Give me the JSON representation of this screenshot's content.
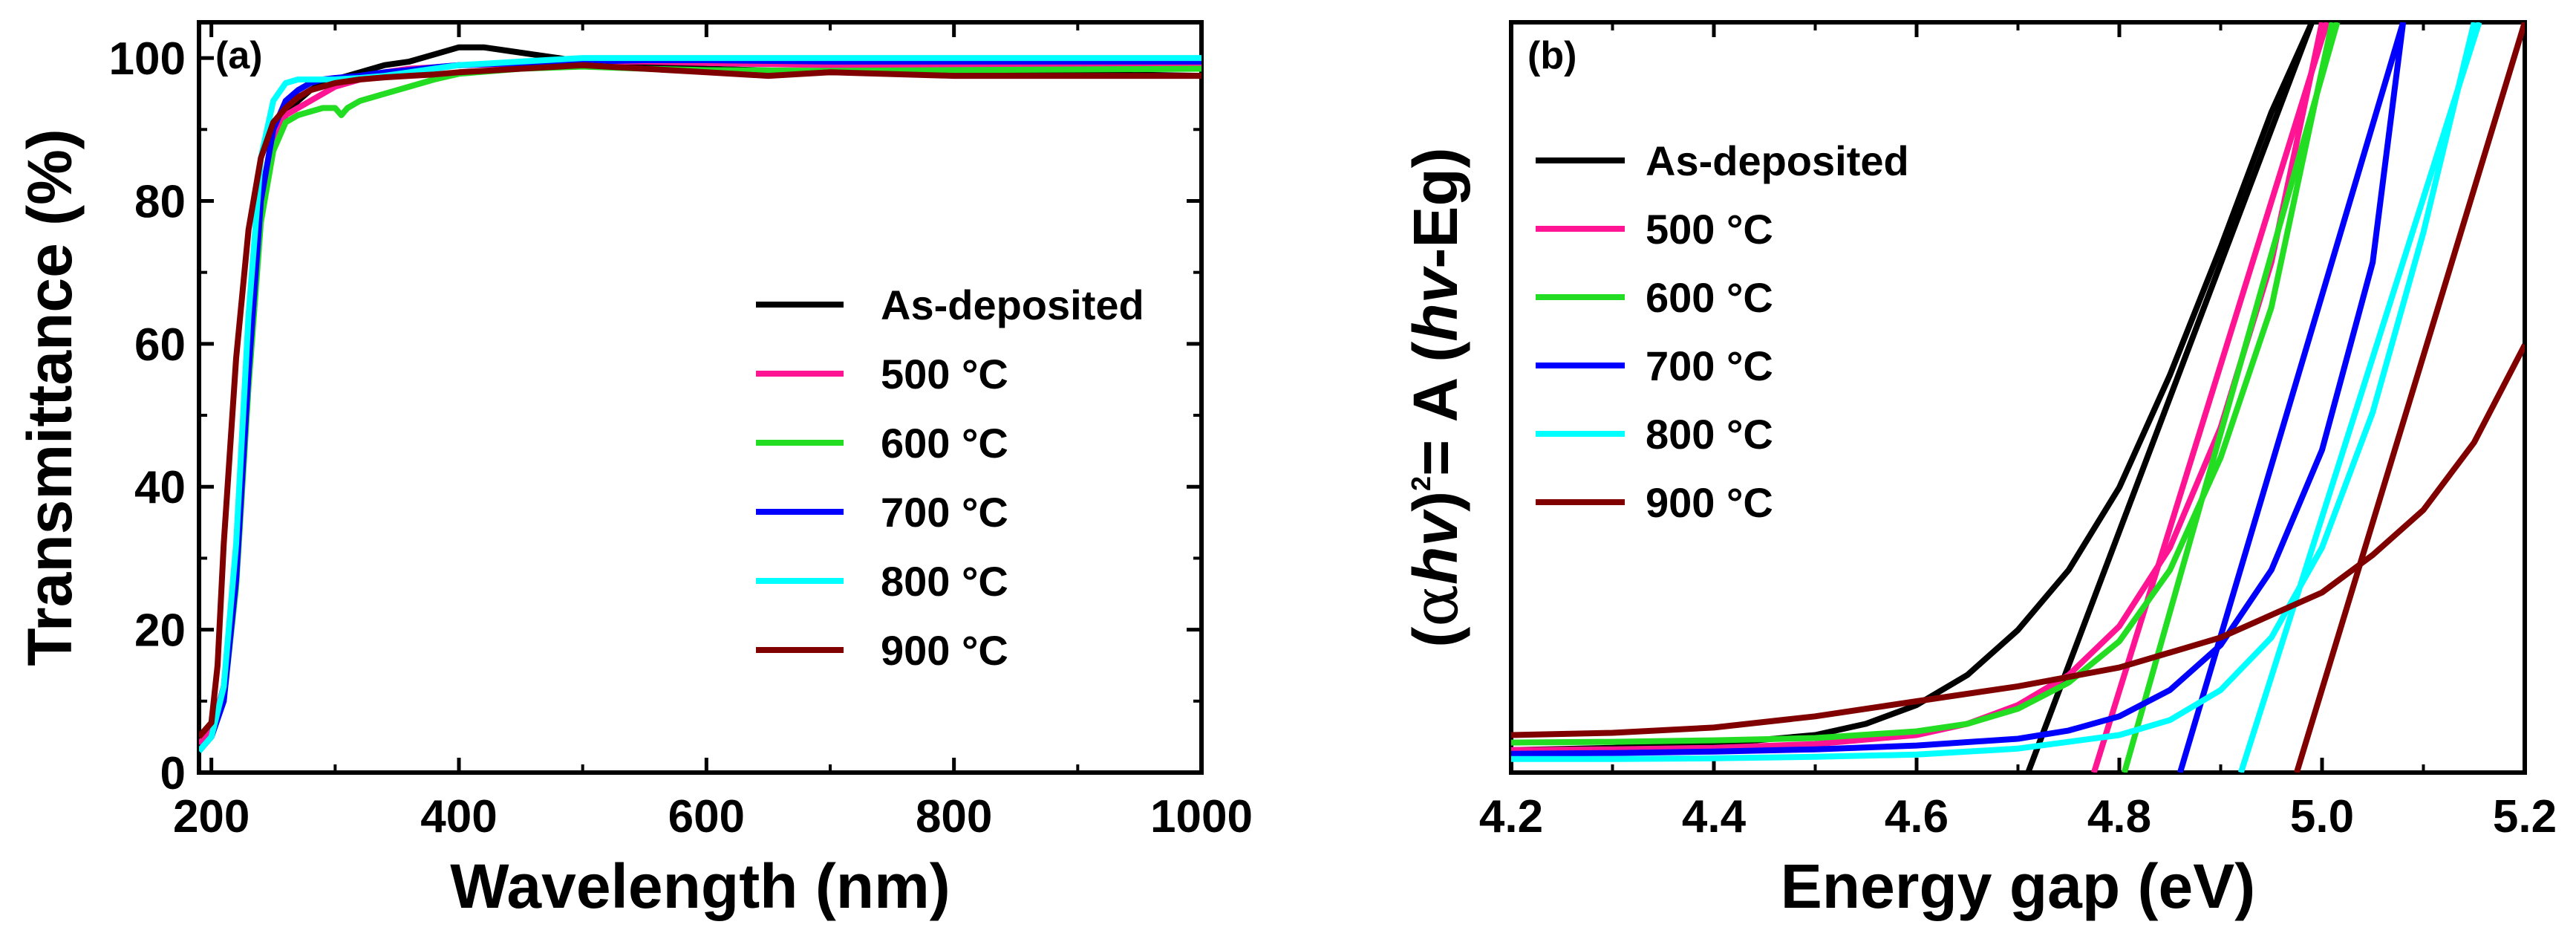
{
  "chart_data": [
    {
      "type": "line",
      "panel_label": "(a)",
      "xlabel": "Wavelength (nm)",
      "ylabel": "Transmittance (%)",
      "xlim": [
        190,
        1000
      ],
      "ylim": [
        0,
        105
      ],
      "xticks": [
        200,
        400,
        600,
        800,
        1000
      ],
      "yticks": [
        0,
        20,
        40,
        60,
        80,
        100
      ],
      "xtick_labels": [
        "200",
        "400",
        "600",
        "800",
        "1000"
      ],
      "ytick_labels": [
        "0",
        "20",
        "40",
        "60",
        "80",
        "100"
      ],
      "legend_position": "center-right",
      "series": [
        {
          "name": "As-deposited",
          "color": "#000000",
          "x": [
            190,
            200,
            210,
            220,
            230,
            240,
            250,
            260,
            270,
            280,
            290,
            300,
            320,
            340,
            360,
            380,
            400,
            420,
            440,
            460,
            480,
            500,
            550,
            600,
            700,
            800,
            900,
            1000
          ],
          "y": [
            4,
            6,
            12,
            28,
            55,
            78,
            88,
            92,
            94,
            95.5,
            96.5,
            97,
            98,
            99,
            99.5,
            100.5,
            101.5,
            101.5,
            101,
            100.5,
            100,
            99.5,
            99,
            98.5,
            98,
            97.8,
            97.8,
            97.5
          ]
        },
        {
          "name": "500 °C",
          "color": "#ff1493",
          "x": [
            190,
            200,
            210,
            220,
            230,
            240,
            250,
            260,
            270,
            280,
            290,
            300,
            320,
            340,
            360,
            380,
            400,
            450,
            500,
            550,
            600,
            700,
            800,
            900,
            1000
          ],
          "y": [
            4,
            6,
            12,
            30,
            58,
            80,
            89,
            92,
            93,
            94,
            95,
            96,
            97,
            98,
            98.5,
            98.7,
            99,
            99.2,
            99.5,
            99.5,
            99.3,
            99,
            99,
            99,
            99
          ]
        },
        {
          "name": "600 °C",
          "color": "#22dd22",
          "x": [
            190,
            200,
            210,
            220,
            230,
            240,
            250,
            260,
            270,
            280,
            290,
            300,
            305,
            310,
            320,
            340,
            360,
            380,
            400,
            450,
            500,
            550,
            600,
            700,
            800,
            900,
            1000
          ],
          "y": [
            3,
            5,
            10,
            26,
            54,
            77,
            87,
            91,
            92,
            92.5,
            93,
            93,
            92,
            93,
            94,
            95,
            96,
            97,
            97.8,
            98.5,
            98.8,
            98.5,
            98.3,
            98.2,
            98.3,
            98.4,
            98.5
          ]
        },
        {
          "name": "700 °C",
          "color": "#0000ff",
          "x": [
            190,
            200,
            210,
            220,
            230,
            240,
            250,
            260,
            270,
            280,
            290,
            300,
            320,
            340,
            360,
            380,
            400,
            450,
            500,
            550,
            600,
            700,
            800,
            900,
            1000
          ],
          "y": [
            3,
            5,
            10,
            27,
            56,
            80,
            90,
            94,
            95.5,
            96.5,
            97,
            97.2,
            97.5,
            98,
            98.3,
            98.7,
            99,
            99.3,
            99.5,
            99.7,
            99.7,
            99.5,
            99.5,
            99.5,
            99.5
          ]
        },
        {
          "name": "800 °C",
          "color": "#00ffff",
          "x": [
            190,
            200,
            210,
            220,
            230,
            240,
            250,
            260,
            270,
            280,
            290,
            300,
            320,
            340,
            360,
            380,
            400,
            450,
            500,
            550,
            600,
            700,
            800,
            900,
            1000
          ],
          "y": [
            3,
            5,
            12,
            32,
            64,
            86,
            94,
            96.5,
            97,
            97,
            97,
            97,
            97.2,
            97.5,
            98,
            98.5,
            99,
            99.5,
            100,
            100,
            100,
            100,
            100,
            100,
            100
          ]
        },
        {
          "name": "900 °C",
          "color": "#800000",
          "x": [
            190,
            200,
            205,
            210,
            220,
            230,
            240,
            250,
            260,
            270,
            280,
            290,
            300,
            320,
            340,
            360,
            380,
            400,
            450,
            500,
            550,
            600,
            650,
            700,
            800,
            900,
            1000
          ],
          "y": [
            5,
            7,
            15,
            32,
            58,
            76,
            86,
            91,
            93,
            94.5,
            95.5,
            96,
            96.5,
            97,
            97.3,
            97.5,
            97.7,
            98,
            98.5,
            99,
            98.5,
            98,
            97.5,
            98,
            97.5,
            97.5,
            97.5
          ]
        }
      ]
    },
    {
      "type": "line",
      "panel_label": "(b)",
      "xlabel": "Energy gap (eV)",
      "ylabel": "(αhv)²= A (hv-Eg)",
      "ylabel_parts": {
        "open": "(",
        "alpha": "α",
        "hv": "hv",
        "close": ")",
        "sup": "2",
        "eq": "= A (",
        "hv2": "hv",
        "tail": "-Eg)"
      },
      "xlim": [
        4.2,
        5.2
      ],
      "ylim": [
        0,
        100
      ],
      "xticks": [
        4.2,
        4.4,
        4.6,
        4.8,
        5.0,
        5.2
      ],
      "xtick_labels": [
        "4.2",
        "4.4",
        "4.6",
        "4.8",
        "5.0",
        "5.2"
      ],
      "legend_position": "top-left",
      "series": [
        {
          "name": "As-deposited",
          "color": "#000000",
          "x": [
            4.2,
            4.3,
            4.4,
            4.5,
            4.55,
            4.6,
            4.65,
            4.7,
            4.75,
            4.8,
            4.85,
            4.9,
            4.95,
            4.99
          ],
          "y": [
            3,
            3.3,
            3.8,
            5,
            6.5,
            9,
            13,
            19,
            27,
            38,
            53,
            70,
            88,
            100
          ],
          "tangent": [
            4.71,
            4.99
          ]
        },
        {
          "name": "500 °C",
          "color": "#ff1493",
          "x": [
            4.2,
            4.3,
            4.4,
            4.5,
            4.6,
            4.65,
            4.7,
            4.75,
            4.8,
            4.85,
            4.9,
            4.95,
            5.0
          ],
          "y": [
            3,
            3.1,
            3.3,
            3.8,
            5,
            6.5,
            9,
            13,
            19.5,
            30,
            46,
            68,
            100
          ],
          "tangent": [
            4.775,
            5.005
          ]
        },
        {
          "name": "600 °C",
          "color": "#22dd22",
          "x": [
            4.2,
            4.3,
            4.4,
            4.5,
            4.6,
            4.65,
            4.7,
            4.75,
            4.8,
            4.85,
            4.9,
            4.95,
            5.01
          ],
          "y": [
            4,
            4.1,
            4.3,
            4.6,
            5.5,
            6.5,
            8.5,
            12,
            17.5,
            27,
            42,
            62,
            100
          ],
          "tangent": [
            4.805,
            5.015
          ]
        },
        {
          "name": "700 °C",
          "color": "#0000ff",
          "x": [
            4.2,
            4.3,
            4.4,
            4.5,
            4.6,
            4.7,
            4.75,
            4.8,
            4.85,
            4.9,
            4.95,
            5.0,
            5.05,
            5.08
          ],
          "y": [
            2.5,
            2.6,
            2.8,
            3.1,
            3.6,
            4.5,
            5.6,
            7.5,
            11,
            17,
            27,
            43,
            68,
            100
          ],
          "tangent": [
            4.86,
            5.08
          ]
        },
        {
          "name": "800 °C",
          "color": "#00ffff",
          "x": [
            4.2,
            4.3,
            4.4,
            4.5,
            4.6,
            4.7,
            4.8,
            4.85,
            4.9,
            4.95,
            5.0,
            5.05,
            5.1,
            5.15
          ],
          "y": [
            1.8,
            1.8,
            1.9,
            2.1,
            2.4,
            3.2,
            5,
            7,
            11,
            18,
            30,
            48,
            72,
            100
          ],
          "tangent": [
            4.92,
            5.155
          ]
        },
        {
          "name": "900 °C",
          "color": "#800000",
          "x": [
            4.2,
            4.3,
            4.4,
            4.5,
            4.6,
            4.7,
            4.8,
            4.9,
            5.0,
            5.05,
            5.1,
            5.15,
            5.2
          ],
          "y": [
            5,
            5.3,
            6,
            7.5,
            9.5,
            11.5,
            14,
            18,
            24,
            29,
            35,
            44,
            57
          ],
          "tangent": [
            4.975,
            5.2
          ]
        }
      ]
    }
  ]
}
